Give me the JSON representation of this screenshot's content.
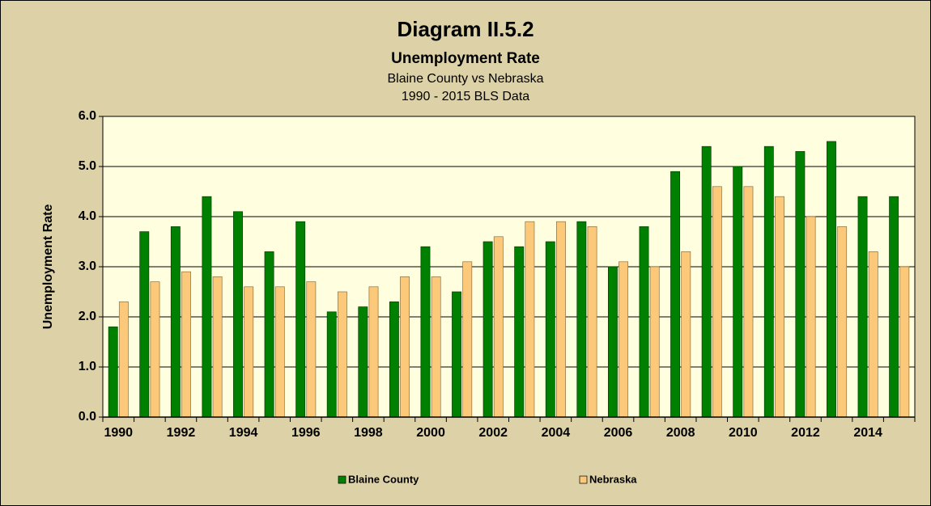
{
  "chart_data": {
    "type": "bar",
    "title": "Diagram II.5.2",
    "subtitle": [
      "Unemployment Rate",
      "Blaine County vs Nebraska",
      "1990 - 2015 BLS Data"
    ],
    "y_label": "Unemployment Rate",
    "categories": [
      "1990",
      null,
      "1992",
      null,
      "1994",
      null,
      "1996",
      null,
      "1998",
      null,
      "2000",
      null,
      "2002",
      null,
      "2004",
      null,
      "2006",
      null,
      "2008",
      null,
      "2010",
      null,
      "2012",
      null,
      "2014",
      null
    ],
    "series": [
      {
        "name": "Blaine County",
        "color": "#008000",
        "values": [
          1.8,
          3.7,
          3.8,
          4.4,
          4.1,
          3.3,
          3.9,
          2.1,
          2.2,
          2.3,
          3.4,
          2.5,
          3.5,
          3.4,
          3.5,
          3.9,
          3.0,
          3.8,
          4.9,
          5.4,
          5.0,
          5.4,
          5.3,
          5.5,
          4.4,
          4.4
        ]
      },
      {
        "name": "Nebraska",
        "color": "#fcc97a",
        "values": [
          2.3,
          2.7,
          2.9,
          2.8,
          2.6,
          2.6,
          2.7,
          2.5,
          2.6,
          2.8,
          2.8,
          3.1,
          3.6,
          3.9,
          3.9,
          3.8,
          3.1,
          3.0,
          3.3,
          4.6,
          4.6,
          4.4,
          4.0,
          3.8,
          3.3,
          3.0
        ]
      }
    ],
    "ylim": [
      0,
      6
    ],
    "yticks": [
      {
        "value": 0,
        "label": "0.0"
      },
      {
        "value": 1,
        "label": "1.0"
      },
      {
        "value": 2,
        "label": "2.0"
      },
      {
        "value": 3,
        "label": "3.0"
      },
      {
        "value": 4,
        "label": "4.0"
      },
      {
        "value": 5,
        "label": "5.0"
      },
      {
        "value": 6,
        "label": "6.0"
      }
    ],
    "grid": true,
    "legend": "bottom"
  }
}
